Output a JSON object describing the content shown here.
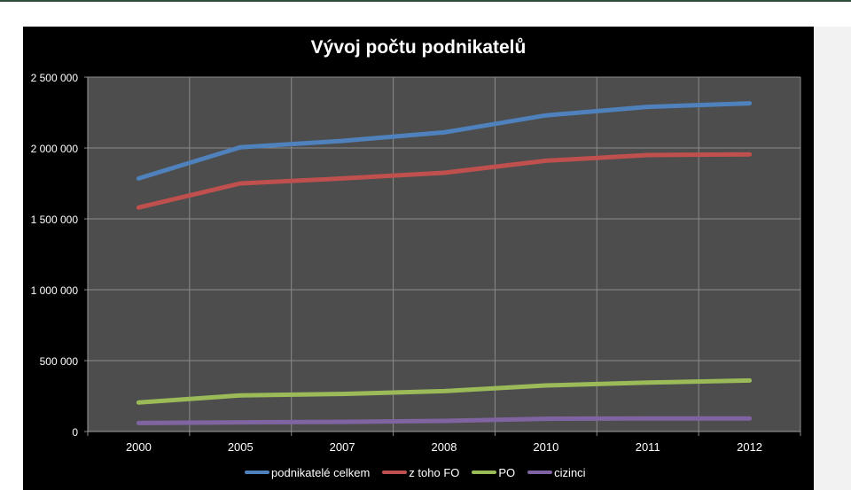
{
  "chart_data": {
    "type": "line",
    "title": "Vývoj počtu podnikatelů",
    "categories": [
      "2000",
      "2005",
      "2007",
      "2008",
      "2010",
      "2011",
      "2012"
    ],
    "ylim": [
      0,
      2500000
    ],
    "yticks": [
      0,
      500000,
      1000000,
      1500000,
      2000000,
      2500000
    ],
    "ytick_labels": [
      "0",
      "500 000",
      "1 000 000",
      "1 500 000",
      "2 000 000",
      "2 500 000"
    ],
    "grid": true,
    "legend_position": "bottom",
    "series": [
      {
        "name": "podnikatelé celkem",
        "color": "#4f81bd",
        "values": [
          1785000,
          2005000,
          2050000,
          2110000,
          2230000,
          2290000,
          2315000
        ]
      },
      {
        "name": "z toho FO",
        "color": "#c0504d",
        "values": [
          1580000,
          1750000,
          1785000,
          1825000,
          1910000,
          1950000,
          1955000
        ]
      },
      {
        "name": "PO",
        "color": "#9bbb59",
        "values": [
          205000,
          255000,
          265000,
          285000,
          325000,
          345000,
          360000
        ]
      },
      {
        "name": "cizinci",
        "color": "#8064a2",
        "values": [
          60000,
          65000,
          68000,
          75000,
          90000,
          92000,
          92000
        ]
      }
    ]
  }
}
